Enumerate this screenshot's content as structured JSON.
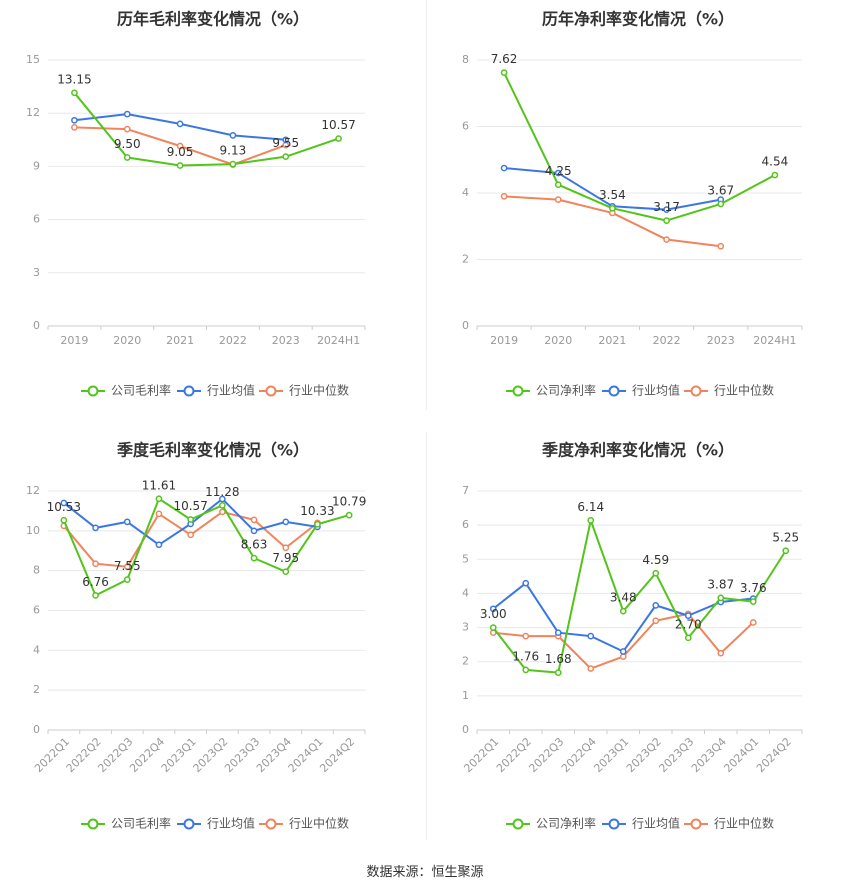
{
  "colors": {
    "company": "#52c41a",
    "industry_avg": "#3b77e3",
    "industry_median": "#f0845c",
    "grid": "#e8e8e8",
    "axis_text": "#999999",
    "label_text": "#333333"
  },
  "footer": {
    "source": "数据来源：恒生聚源"
  },
  "chart_data": [
    {
      "type": "line",
      "title": "历年毛利率变化情况（%）",
      "categories": [
        "2019",
        "2020",
        "2021",
        "2022",
        "2023",
        "2024H1"
      ],
      "ylim": [
        0,
        15
      ],
      "yticks": [
        0,
        3,
        6,
        9,
        12,
        15
      ],
      "grid": true,
      "legend_position": "bottom",
      "series": [
        {
          "name": "公司毛利率",
          "values": [
            13.15,
            9.5,
            9.05,
            9.13,
            9.55,
            10.57
          ],
          "labels": [
            "13.15",
            "9.50",
            "9.05",
            "9.13",
            "9.55",
            "10.57"
          ]
        },
        {
          "name": "行业均值",
          "values": [
            11.6,
            11.95,
            11.4,
            10.75,
            10.5,
            null
          ]
        },
        {
          "name": "行业中位数",
          "values": [
            11.2,
            11.1,
            10.15,
            9.1,
            10.2,
            null
          ]
        }
      ]
    },
    {
      "type": "line",
      "title": "历年净利率变化情况（%）",
      "categories": [
        "2019",
        "2020",
        "2021",
        "2022",
        "2023",
        "2024H1"
      ],
      "ylim": [
        0,
        8
      ],
      "yticks": [
        0,
        2,
        4,
        6,
        8
      ],
      "grid": true,
      "legend_position": "bottom",
      "series": [
        {
          "name": "公司净利率",
          "values": [
            7.62,
            4.25,
            3.54,
            3.17,
            3.67,
            4.54
          ],
          "labels": [
            "7.62",
            "4.25",
            "3.54",
            "3.17",
            "3.67",
            "4.54"
          ]
        },
        {
          "name": "行业均值",
          "values": [
            4.75,
            4.6,
            3.6,
            3.5,
            3.8,
            null
          ]
        },
        {
          "name": "行业中位数",
          "values": [
            3.9,
            3.8,
            3.4,
            2.6,
            2.4,
            null
          ]
        }
      ]
    },
    {
      "type": "line",
      "title": "季度毛利率变化情况（%）",
      "categories": [
        "2022Q1",
        "2022Q2",
        "2022Q3",
        "2022Q4",
        "2023Q1",
        "2023Q2",
        "2023Q3",
        "2023Q4",
        "2024Q1",
        "2024Q2"
      ],
      "ylim": [
        0,
        12
      ],
      "yticks": [
        0,
        2,
        4,
        6,
        8,
        10,
        12
      ],
      "grid": true,
      "legend_position": "bottom",
      "series": [
        {
          "name": "公司毛利率",
          "values": [
            10.53,
            6.76,
            7.55,
            11.61,
            10.57,
            11.28,
            8.63,
            7.95,
            10.33,
            10.79
          ],
          "labels": [
            "10.53",
            "6.76",
            "7.55",
            "11.61",
            "10.57",
            "11.28",
            "8.63",
            "7.95",
            "10.33",
            "10.79"
          ]
        },
        {
          "name": "行业均值",
          "values": [
            11.4,
            10.15,
            10.45,
            9.3,
            10.35,
            11.6,
            10.0,
            10.45,
            10.2,
            null
          ]
        },
        {
          "name": "行业中位数",
          "values": [
            10.25,
            8.35,
            8.2,
            10.85,
            9.8,
            10.95,
            10.55,
            9.15,
            10.4,
            null
          ]
        }
      ]
    },
    {
      "type": "line",
      "title": "季度净利率变化情况（%）",
      "categories": [
        "2022Q1",
        "2022Q2",
        "2022Q3",
        "2022Q4",
        "2023Q1",
        "2023Q2",
        "2023Q3",
        "2023Q4",
        "2024Q1",
        "2024Q2"
      ],
      "ylim": [
        0,
        7
      ],
      "yticks": [
        0,
        1,
        2,
        3,
        4,
        5,
        6,
        7
      ],
      "grid": true,
      "legend_position": "bottom",
      "series": [
        {
          "name": "公司净利率",
          "values": [
            3.0,
            1.76,
            1.68,
            6.14,
            3.48,
            4.59,
            2.7,
            3.87,
            3.76,
            5.25
          ],
          "labels": [
            "3.00",
            "1.76",
            "1.68",
            "6.14",
            "3.48",
            "4.59",
            "2.70",
            "3.87",
            "3.76",
            "5.25"
          ]
        },
        {
          "name": "行业均值",
          "values": [
            3.55,
            4.3,
            2.85,
            2.75,
            2.3,
            3.65,
            3.35,
            3.75,
            3.85,
            null
          ]
        },
        {
          "name": "行业中位数",
          "values": [
            2.85,
            2.75,
            2.75,
            1.8,
            2.15,
            3.2,
            3.4,
            2.25,
            3.15,
            null
          ]
        }
      ]
    }
  ]
}
